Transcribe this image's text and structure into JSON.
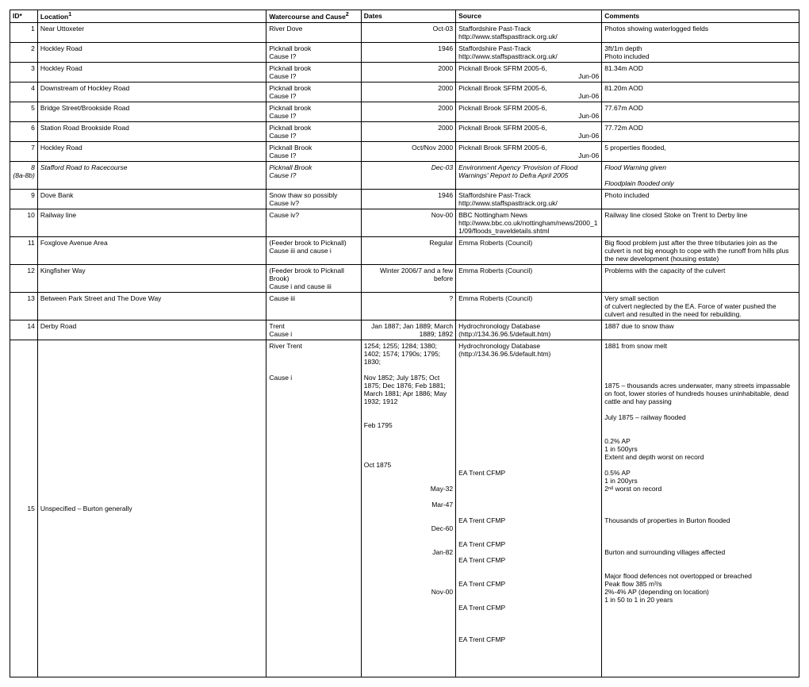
{
  "columns": {
    "id": "ID*",
    "location": "Location",
    "watercourse": "Watercourse and Cause",
    "dates": "Dates",
    "source": "Source",
    "comments": "Comments",
    "sup1": "1",
    "sup2": "2"
  },
  "rows": [
    {
      "id": "1",
      "location": "Near Uttoxeter",
      "water": "River Dove",
      "dates": "Oct-03",
      "source": "Staffordshire Past-Track\nhttp://www.staffspasttrack.org.uk/",
      "comments": "Photos showing waterlogged fields"
    },
    {
      "id": "2",
      "location": "Hockley Road",
      "water": "Picknall brook\nCause I?",
      "dates": "1946",
      "source": "Staffordshire Past-Track\nhttp://www.staffspasttrack.org.uk/",
      "comments": "3ft/1m depth\nPhoto included"
    },
    {
      "id": "3",
      "location": "Hockley Road",
      "water": "Picknall brook\nCause I?",
      "dates": "2000",
      "source": "Picknall Brook SFRM 2005-6,",
      "dates_extra": "Jun-06",
      "comments": "81.34m AOD"
    },
    {
      "id": "4",
      "location": "Downstream of Hockley Road",
      "water": "Picknall brook\nCause I?",
      "dates": "2000",
      "source": "Picknall Brook SFRM 2005-6,",
      "dates_extra": "Jun-06",
      "comments": "81.20m AOD"
    },
    {
      "id": "5",
      "location": "Bridge Street/Brookside Road",
      "water": "Picknall brook\nCause I?",
      "dates": "2000",
      "source": "Picknall Brook SFRM 2005-6,",
      "dates_extra": "Jun-06",
      "comments": "77.67m AOD"
    },
    {
      "id": "6",
      "location": "Station Road Brookside Road",
      "water": "Picknall brook\nCause I?",
      "dates": "2000",
      "source": "Picknall Brook SFRM 2005-6,",
      "dates_extra": "Jun-06",
      "comments": "77.72m AOD"
    },
    {
      "id": "7",
      "location": "Hockley Road",
      "water": "Picknall Brook\nCause I?",
      "dates": "Oct/Nov 2000",
      "source": "Picknall Brook SFRM 2005-6,",
      "dates_extra": "Jun-06",
      "comments": "5 properties flooded,"
    },
    {
      "id": "8\n(8a-8b)",
      "italic": true,
      "location": "Stafford Road to Racecourse",
      "water": "Picknall Brook\nCause I?",
      "dates": "Dec-03",
      "source": "Environment Agency 'Provision of Flood Warnings' Report to Defra April 2005",
      "comments": "Flood Warning given\n\nFloodplain flooded only"
    },
    {
      "id": "9",
      "location": "Dove Bank",
      "water": "Snow thaw so possibly Cause iv?",
      "dates": "1946",
      "source": "Staffordshire Past-Track\nhttp://www.staffspasttrack.org.uk/",
      "comments": "Photo included"
    },
    {
      "id": "10",
      "location": "Railway line",
      "water": "Cause iv?",
      "dates": "Nov-00",
      "source": "BBC Nottingham News\nhttp://www.bbc.co.uk/nottingham/news/2000_11/09/floods_traveldetails.shtml",
      "comments": "Railway line closed Stoke on Trent to Derby line"
    },
    {
      "id": "11",
      "location": "Foxglove Avenue Area",
      "water": "(Feeder brook to Picknall)\nCause iii and cause i",
      "dates": "Regular",
      "source": "Emma Roberts (Council)",
      "comments": "Big flood problem just after the three tributaries join as the culvert is not big enough to cope with the runoff from hills plus the new development (housing estate)"
    },
    {
      "id": "12",
      "location": "Kingfisher Way",
      "water": "(Feeder brook to Picknall Brook)\nCause i and cause iii",
      "dates": "Winter 2006/7 and a few before",
      "source": "Emma Roberts (Council)",
      "comments": "Problems with the capacity of the culvert"
    },
    {
      "id": "13",
      "location": "Between Park Street and The Dove Way",
      "water": "Cause iii",
      "dates": "?",
      "source": "Emma Roberts (Council)",
      "comments": "Very small section\nof culvert neglected by the EA.  Force of water pushed the culvert and resulted in the need for rebuilding."
    },
    {
      "id": "14",
      "location": "Derby Road",
      "water": "Trent\nCause i",
      "dates": "Jan 1887; Jan 1889; March 1889; 1892",
      "source": "Hydrochronology Database (http://134.36.96.5/default.htm)",
      "comments": "1887 due to snow thaw"
    }
  ],
  "row15": {
    "id": "15",
    "location": "Unspecified – Burton generally",
    "water": "River Trent\n\n\n\nCause i",
    "dateslines": [
      "1254; 1255; 1284; 1380; 1402; 1574; 1790s; 1795; 1830;",
      "",
      "Nov 1852; July 1875; Oct 1875; Dec 1876;  Feb 1881; March 1881; Apr 1886; May 1932; 1912",
      "",
      "",
      "Feb 1795",
      "",
      "",
      "",
      "",
      "Oct 1875",
      "",
      "",
      "May-32",
      "",
      "Mar-47",
      "",
      "",
      "Dec-60",
      "",
      "",
      "Jan-82",
      "",
      "",
      "",
      "",
      "Nov-00",
      "",
      "",
      "",
      "",
      "",
      "",
      "",
      "",
      "",
      ""
    ],
    "sourcelines": [
      "Hydrochronology Database (http://134.36.96.5/default.htm)",
      "",
      "",
      "",
      "",
      "",
      "",
      "",
      "",
      "",
      "",
      "",
      "",
      "",
      "",
      "EA Trent CFMP",
      "",
      "",
      "",
      "",
      "",
      "EA Trent CFMP",
      "",
      "",
      "EA Trent CFMP",
      "",
      "EA Trent CFMP",
      "",
      "",
      "EA Trent CFMP",
      "",
      "",
      "EA Trent CFMP",
      "",
      "",
      "",
      "EA Trent CFMP"
    ],
    "commentlines": [
      "1881 from snow melt",
      "",
      "",
      "",
      "",
      "1875 – thousands acres underwater, many streets impassable on foot, lower stories of hundreds houses uninhabitable, dead cattle and hay passing",
      "",
      "July 1875 – railway flooded",
      "",
      "",
      "0.2% AP",
      "1 in 500yrs",
      "Extent and depth worst on record",
      "",
      "0.5% AP",
      "1 in 200yrs",
      "2ⁿᵈ worst on record",
      "",
      "",
      "",
      "Thousands of properties in Burton flooded",
      "",
      "",
      "",
      "Burton and surrounding villages affected",
      "",
      "",
      "Major flood defences not overtopped or breached",
      "Peak flow 385 m³/s",
      "2%-4% AP (depending on location)",
      "1 in 50 to 1 in 20 years"
    ]
  }
}
